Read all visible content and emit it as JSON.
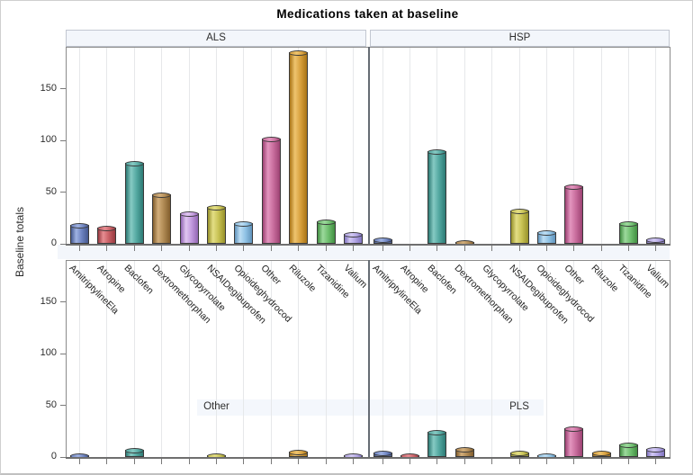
{
  "title": "Medications taken at baseline",
  "y_axis": {
    "label": "Baseline totals",
    "tick_labels": [
      "0",
      "50",
      "100",
      "150"
    ]
  },
  "chart_data": {
    "type": "bar",
    "title": "Medications taken at baseline",
    "ylabel": "Baseline totals",
    "ylim": [
      0,
      190
    ],
    "yticks": [
      0,
      50,
      100,
      150
    ],
    "grid": "vertical-category-gridlines",
    "layout": "2x2-panels",
    "legend": "none",
    "categories": [
      "AmitriptylineEla",
      "Atropine",
      "Baclofen",
      "Dextromethorphan",
      "Glycopyrrolate",
      "NSAIDegibuprofen",
      "Opioideghydrocod",
      "Other",
      "Riluzole",
      "Tizanidine",
      "Valium"
    ],
    "panels": [
      {
        "label": "ALS",
        "position": "top-left",
        "values": [
          18,
          16,
          78,
          48,
          30,
          36,
          20,
          102,
          185,
          22,
          10
        ]
      },
      {
        "label": "HSP",
        "position": "top-right",
        "values": [
          4,
          0,
          90,
          2,
          0,
          32,
          11,
          56,
          0,
          20,
          4
        ]
      },
      {
        "label": "Other",
        "position": "bottom-left",
        "values": [
          2,
          0,
          7,
          0,
          0,
          2,
          0,
          0,
          5,
          0,
          2
        ]
      },
      {
        "label": "PLS",
        "position": "bottom-right",
        "values": [
          4,
          2,
          24,
          8,
          0,
          4,
          2,
          28,
          4,
          12,
          8
        ]
      }
    ],
    "series_colors": [
      {
        "category": "AmitriptylineEla",
        "base": "#6d83c1",
        "light": "#9fb2e2",
        "dark": "#45588f"
      },
      {
        "category": "Atropine",
        "base": "#c96066",
        "light": "#e68d92",
        "dark": "#973a40"
      },
      {
        "category": "Baclofen",
        "base": "#53a8a1",
        "light": "#86cac3",
        "dark": "#2d7a74"
      },
      {
        "category": "Dextromethorphan",
        "base": "#b08a54",
        "light": "#d2ae7b",
        "dark": "#825e2d"
      },
      {
        "category": "Glycopyrrolate",
        "base": "#c29ade",
        "light": "#e0c6f1",
        "dark": "#9166b3"
      },
      {
        "category": "NSAIDegibuprofen",
        "base": "#c8c253",
        "light": "#e3de85",
        "dark": "#97912a"
      },
      {
        "category": "Opioideghydrocod",
        "base": "#8fc2e5",
        "light": "#bddef4",
        "dark": "#6093bb"
      },
      {
        "category": "Other",
        "base": "#c96d9d",
        "light": "#e395bf",
        "dark": "#9c4272"
      },
      {
        "category": "Riluzole",
        "base": "#d8a03d",
        "light": "#efc46e",
        "dark": "#a97416"
      },
      {
        "category": "Tizanidine",
        "base": "#6ebe6e",
        "light": "#9cd99c",
        "dark": "#428f42"
      },
      {
        "category": "Valium",
        "base": "#b1a4e4",
        "light": "#d2c9f3",
        "dark": "#8174bf"
      }
    ],
    "colors": {
      "header_bg": "#f3f6fb",
      "strip_bg": "#f4f7fc",
      "frame": "#8b8b8b",
      "axis_line": "#6f6f6f",
      "gridline": "#e6e8ea",
      "text": "#2d2d2d"
    }
  }
}
